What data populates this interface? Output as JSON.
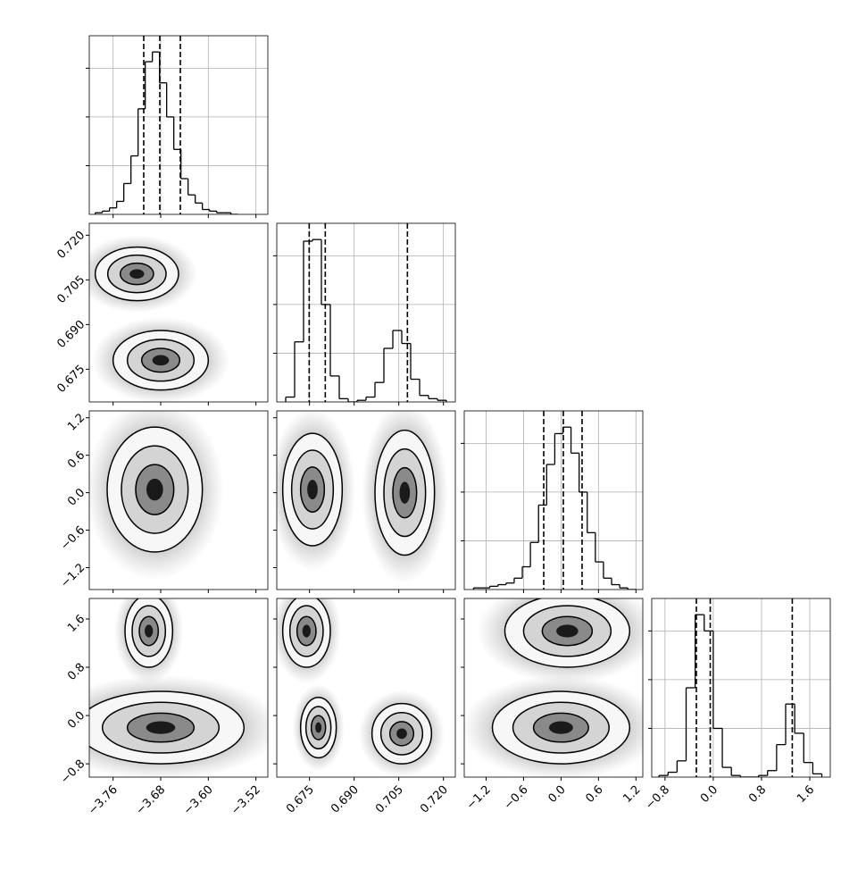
{
  "chart_data": {
    "type": "corner",
    "hist_ylim": [
      0,
      1.1
    ],
    "hist_yticks": [
      0.3,
      0.6,
      0.9
    ],
    "params": [
      {
        "lim": [
          -3.8,
          -3.5
        ],
        "ticks": [
          {
            "value": -3.76,
            "label": "−3.76"
          },
          {
            "value": -3.68,
            "label": "−3.68"
          },
          {
            "value": -3.6,
            "label": "−3.60"
          },
          {
            "value": -3.52,
            "label": "−3.52"
          }
        ]
      },
      {
        "lim": [
          0.664,
          0.724
        ],
        "ticks": [
          0.675,
          {
            "value": 0.69,
            "label": "0.690"
          },
          0.705,
          {
            "value": 0.72,
            "label": "0.720"
          }
        ]
      },
      {
        "lim": [
          -1.55,
          1.31
        ],
        "ticks": [
          {
            "value": -1.2,
            "label": "−1.2"
          },
          {
            "value": -0.6,
            "label": "−0.6"
          },
          {
            "value": 0.0,
            "label": "0.0"
          },
          0.6,
          1.2
        ]
      },
      {
        "lim": [
          -1.02,
          1.94
        ],
        "ticks": [
          {
            "value": -0.8,
            "label": "−0.8"
          },
          {
            "value": 0.0,
            "label": "0.0"
          },
          0.8,
          1.6
        ]
      }
    ],
    "histograms": [
      {
        "bins": [
          -3.79,
          -3.778,
          -3.766,
          -3.754,
          -3.742,
          -3.73,
          -3.718,
          -3.706,
          -3.694,
          -3.682,
          -3.67,
          -3.658,
          -3.646,
          -3.634,
          -3.622,
          -3.61,
          -3.598,
          -3.586,
          -3.574,
          -3.562,
          -3.55
        ],
        "values": [
          0.01,
          0.02,
          0.04,
          0.08,
          0.19,
          0.36,
          0.65,
          0.94,
          1.0,
          0.81,
          0.6,
          0.4,
          0.22,
          0.12,
          0.07,
          0.03,
          0.02,
          0.01,
          0.01,
          0.0
        ],
        "quantiles": [
          -3.7085,
          -3.6815,
          -3.647
        ]
      },
      {
        "bins": [
          0.667,
          0.67,
          0.673,
          0.676,
          0.679,
          0.682,
          0.685,
          0.688,
          0.691,
          0.694,
          0.697,
          0.7,
          0.703,
          0.706,
          0.709,
          0.712,
          0.715,
          0.718,
          0.721
        ],
        "values": [
          0.03,
          0.37,
          0.99,
          1.0,
          0.6,
          0.16,
          0.02,
          0,
          0.01,
          0.03,
          0.12,
          0.33,
          0.44,
          0.36,
          0.14,
          0.04,
          0.02,
          0.01
        ],
        "quantiles": [
          0.6749,
          0.6803,
          0.7079
        ]
      },
      {
        "bins": [
          -1.4,
          -1.27,
          -1.14,
          -1.01,
          -0.88,
          -0.75,
          -0.62,
          -0.49,
          -0.36,
          -0.23,
          -0.1,
          0.03,
          0.16,
          0.29,
          0.42,
          0.55,
          0.68,
          0.81,
          0.94,
          1.07,
          1.2
        ],
        "values": [
          0.01,
          0.01,
          0.02,
          0.03,
          0.04,
          0.07,
          0.14,
          0.29,
          0.52,
          0.77,
          0.96,
          1.0,
          0.84,
          0.6,
          0.35,
          0.17,
          0.07,
          0.03,
          0.01,
          0.0
        ],
        "quantiles": [
          -0.277,
          0.037,
          0.337
        ]
      },
      {
        "bins": [
          -0.9,
          -0.75,
          -0.6,
          -0.45,
          -0.3,
          -0.15,
          0.0,
          0.15,
          0.3,
          0.45,
          0.6,
          0.75,
          0.9,
          1.05,
          1.2,
          1.35,
          1.5,
          1.65,
          1.8
        ],
        "values": [
          0.01,
          0.03,
          0.1,
          0.55,
          1.0,
          0.9,
          0.3,
          0.06,
          0.01,
          0,
          0,
          0.01,
          0.04,
          0.2,
          0.45,
          0.27,
          0.09,
          0.02
        ],
        "quantiles": [
          -0.28,
          -0.05,
          1.31
        ]
      }
    ],
    "panels": [
      {
        "x_param": 0,
        "y_param": 1,
        "modes": [
          {
            "x": -3.72,
            "y": 0.707,
            "sx": 0.035,
            "sy": 0.0045
          },
          {
            "x": -3.68,
            "y": 0.678,
            "sx": 0.04,
            "sy": 0.005
          }
        ]
      },
      {
        "x_param": 0,
        "y_param": 2,
        "modes": [
          {
            "x": -3.69,
            "y": 0.05,
            "sx": 0.04,
            "sy": 0.5
          }
        ]
      },
      {
        "x_param": 1,
        "y_param": 2,
        "modes": [
          {
            "x": 0.676,
            "y": 0.05,
            "sx": 0.005,
            "sy": 0.45
          },
          {
            "x": 0.707,
            "y": 0.0,
            "sx": 0.005,
            "sy": 0.5
          }
        ]
      },
      {
        "x_param": 0,
        "y_param": 3,
        "modes": [
          {
            "x": -3.7,
            "y": 1.4,
            "sx": 0.02,
            "sy": 0.3
          },
          {
            "x": -3.68,
            "y": -0.2,
            "sx": 0.07,
            "sy": 0.3
          }
        ]
      },
      {
        "x_param": 1,
        "y_param": 3,
        "modes": [
          {
            "x": 0.674,
            "y": 1.4,
            "sx": 0.004,
            "sy": 0.3
          },
          {
            "x": 0.678,
            "y": -0.2,
            "sx": 0.003,
            "sy": 0.25
          },
          {
            "x": 0.706,
            "y": -0.3,
            "sx": 0.005,
            "sy": 0.25
          }
        ]
      },
      {
        "x_param": 2,
        "y_param": 3,
        "modes": [
          {
            "x": 0.1,
            "y": 1.4,
            "sx": 0.5,
            "sy": 0.3
          },
          {
            "x": 0.0,
            "y": -0.2,
            "sx": 0.55,
            "sy": 0.3
          }
        ]
      }
    ]
  }
}
